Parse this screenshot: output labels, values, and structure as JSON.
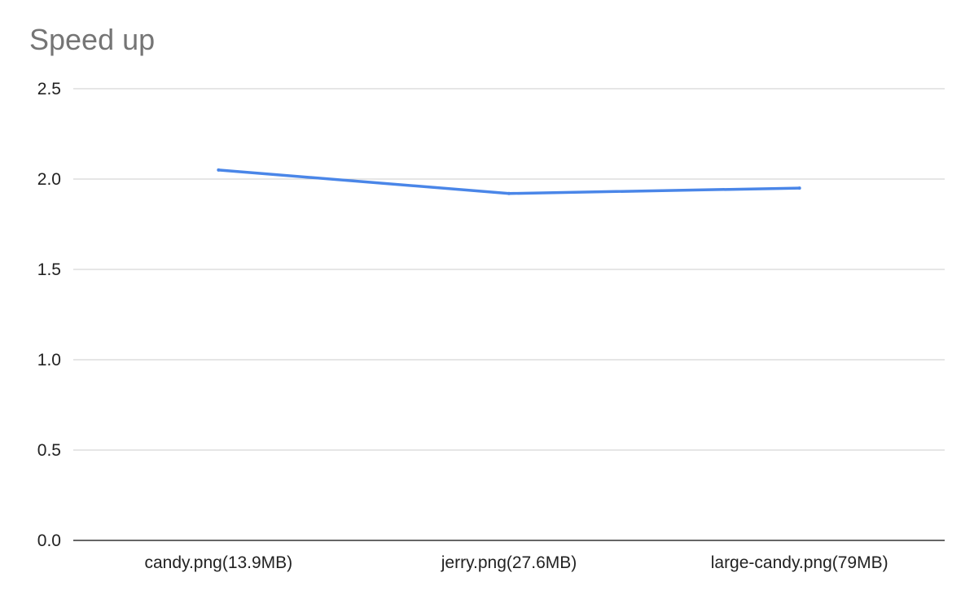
{
  "chart_data": {
    "type": "line",
    "title": "Speed up",
    "categories": [
      "candy.png(13.9MB)",
      "jerry.png(27.6MB)",
      "large-candy.png(79MB)"
    ],
    "series": [
      {
        "values": [
          2.05,
          1.92,
          1.95
        ]
      }
    ],
    "y_ticks": [
      "0.0",
      "0.5",
      "1.0",
      "1.5",
      "2.0",
      "2.5"
    ],
    "ylim": [
      0,
      2.5
    ],
    "grid": true,
    "legend": "none",
    "colors": {
      "line": "#4a86e8",
      "grid": "#cccccc",
      "axis": "#333333",
      "title": "#757575"
    }
  }
}
